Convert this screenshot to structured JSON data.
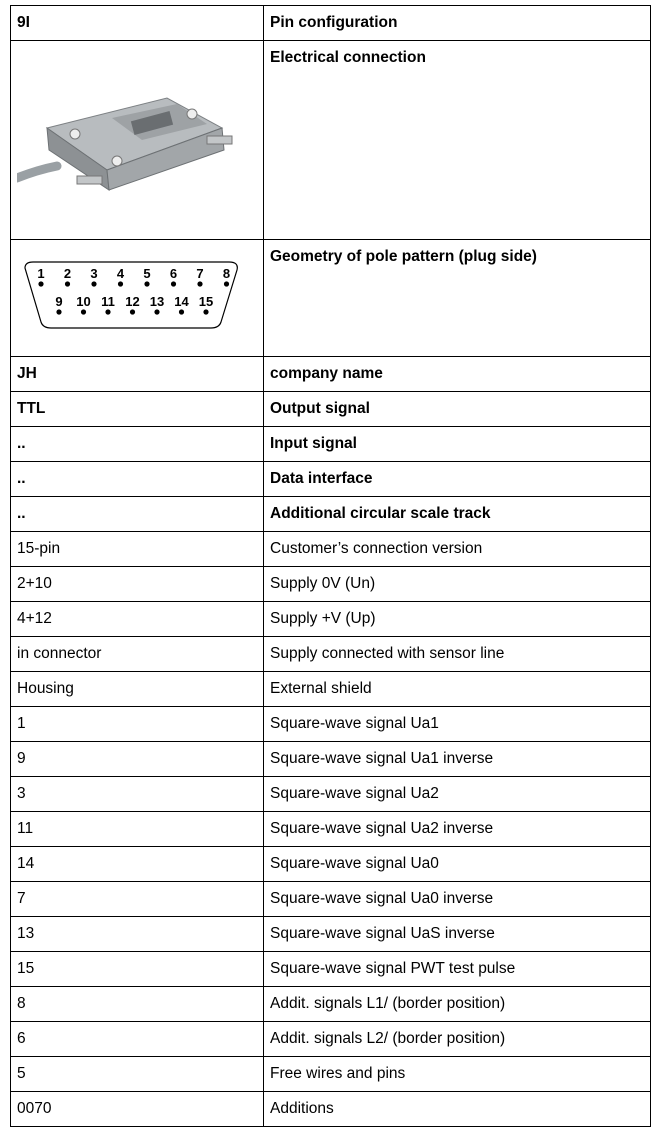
{
  "table": {
    "rows": [
      [
        "9I",
        "Pin configuration"
      ],
      [
        null,
        "Electrical connection"
      ],
      [
        null,
        "Geometry of pole pattern (plug side)"
      ],
      [
        "JH",
        "company name"
      ],
      [
        "TTL",
        "Output signal"
      ],
      [
        "..",
        "Input signal"
      ],
      [
        "..",
        "Data interface"
      ],
      [
        "..",
        "Additional circular scale track"
      ],
      [
        "15-pin",
        "Customer’s connection version"
      ],
      [
        "2+10",
        "Supply 0V (Un)"
      ],
      [
        "4+12",
        "Supply +V (Up)"
      ],
      [
        "in connector",
        "Supply connected with sensor line"
      ],
      [
        "Housing",
        "External shield"
      ],
      [
        "1",
        "Square-wave signal Ua1"
      ],
      [
        "9",
        "Square-wave signal Ua1 inverse"
      ],
      [
        "3",
        "Square-wave signal Ua2"
      ],
      [
        "11",
        "Square-wave signal Ua2 inverse"
      ],
      [
        "14",
        "Square-wave signal Ua0"
      ],
      [
        "7",
        "Square-wave signal Ua0 inverse"
      ],
      [
        "13",
        "Square-wave signal UaS inverse"
      ],
      [
        "15",
        "Square-wave signal PWT test pulse"
      ],
      [
        "8",
        "Addit. signals L1/ (border position)"
      ],
      [
        "6",
        "Addit. signals L2/ (border position)"
      ],
      [
        "5",
        "Free wires and pins"
      ],
      [
        "0070",
        "Additions"
      ]
    ]
  },
  "pole_pattern": {
    "top_pins": [
      "1",
      "2",
      "3",
      "4",
      "5",
      "6",
      "7",
      "8"
    ],
    "bottom_pins": [
      "9",
      "10",
      "11",
      "12",
      "13",
      "14",
      "15"
    ]
  }
}
